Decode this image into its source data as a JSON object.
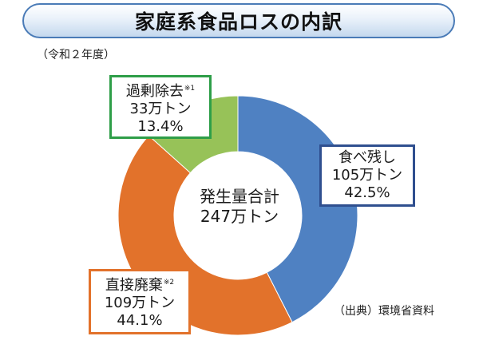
{
  "title": "家庭系食品ロスの内訳",
  "subtitle": "（令和２年度）",
  "center": {
    "line1": "発生量合計",
    "line2": "247万トン"
  },
  "source": "（出典）環境省資料",
  "chart_data": {
    "type": "pie",
    "donut": true,
    "units": "万トン",
    "total": 247,
    "slices": [
      {
        "name": "食べ残し",
        "value": 105,
        "percent": "42.5%",
        "amount_label": "105万トン",
        "note": "",
        "color": "#4f81c2"
      },
      {
        "name": "直接廃棄",
        "value": 109,
        "percent": "44.1%",
        "amount_label": "109万トン",
        "note": "※2",
        "color": "#e2722b"
      },
      {
        "name": "過剰除去",
        "value": 33,
        "percent": "13.4%",
        "amount_label": "33万トン",
        "note": "※1",
        "color": "#97c258"
      }
    ]
  }
}
